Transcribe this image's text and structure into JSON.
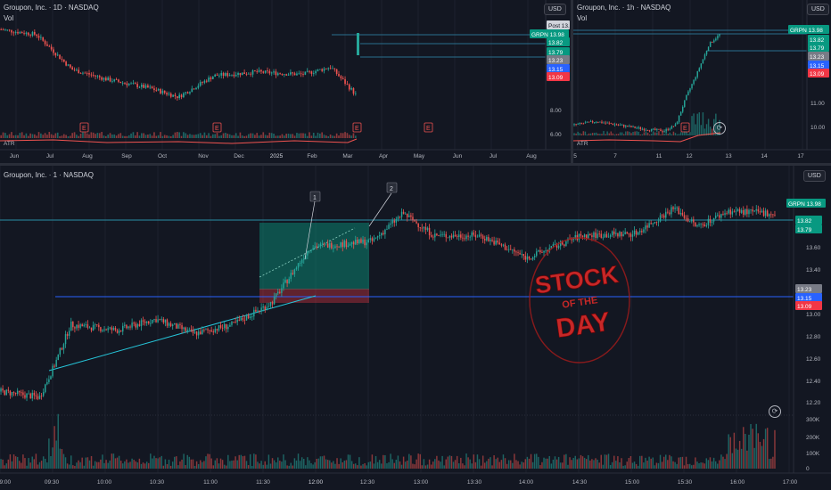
{
  "colors": {
    "up": "#26a69a",
    "down": "#ef5350",
    "bg": "#131722",
    "grid": "#1e222d",
    "level": "#2a6f8f",
    "accent": "#089981",
    "stamp": "#b71c1c"
  },
  "top_left": {
    "title": "Groupon, Inc. · 1D · NASDAQ",
    "vol_label": "Vol",
    "atr_label": "ATR",
    "currency": "USD",
    "prices": [
      "8.00",
      "6.00"
    ],
    "months": [
      "Jun",
      "Jul",
      "Aug",
      "Sep",
      "Oct",
      "Nov",
      "Dec",
      "2025",
      "Feb",
      "Mar",
      "Apr",
      "May",
      "Jun",
      "Jul",
      "Aug"
    ],
    "event_marker": "E",
    "tags": [
      {
        "text": "Post  13.98",
        "kind": "post"
      },
      {
        "text": "GRPN  13.98",
        "kind": "ticker"
      },
      {
        "text": "13.82",
        "kind": "up"
      },
      {
        "text": "13.79",
        "kind": "up"
      },
      {
        "text": "13.23",
        "kind": "gray"
      },
      {
        "text": "13.15",
        "kind": "dark"
      },
      {
        "text": "13.09",
        "kind": "down"
      }
    ]
  },
  "top_right": {
    "title": "Groupon, Inc. · 1h · NASDAQ",
    "vol_label": "Vol",
    "atr_label": "ATR",
    "currency": "USD",
    "prices": [
      "11.00",
      "10.00"
    ],
    "days": [
      "5",
      "7",
      "11",
      "12",
      "13",
      "14",
      "17"
    ],
    "event_marker": "E",
    "tags": [
      {
        "text": "GRPN  13.98",
        "kind": "ticker"
      },
      {
        "text": "13.82",
        "kind": "up"
      },
      {
        "text": "13.79",
        "kind": "up"
      },
      {
        "text": "13.23",
        "kind": "gray"
      },
      {
        "text": "13.15",
        "kind": "dark"
      },
      {
        "text": "13.09",
        "kind": "down"
      }
    ]
  },
  "main": {
    "title": "Groupon, Inc. · 1 · NASDAQ",
    "currency": "USD",
    "prices": [
      "13.60",
      "13.40",
      "13.00",
      "12.80",
      "12.60",
      "12.40",
      "12.20"
    ],
    "volume_labels": [
      "300K",
      "200K",
      "100K",
      "0"
    ],
    "times": [
      "09:00",
      "09:30",
      "10:00",
      "10:30",
      "11:00",
      "11:30",
      "12:00",
      "12:30",
      "13:00",
      "13:30",
      "14:00",
      "14:30",
      "15:00",
      "15:30",
      "16:00",
      "17:00"
    ],
    "markers": [
      "1",
      "2"
    ],
    "tags": [
      {
        "text": "GRPN  13.98",
        "kind": "ticker"
      },
      {
        "text": "13.82",
        "kind": "up"
      },
      {
        "text": "13.79",
        "kind": "up"
      },
      {
        "text": "13.23",
        "kind": "gray"
      },
      {
        "text": "13.15",
        "kind": "dark"
      },
      {
        "text": "13.09",
        "kind": "down"
      }
    ],
    "stamp": {
      "line1": "STOCK",
      "line2": "OF THE",
      "line3": "DAY"
    }
  },
  "chart_data": [
    {
      "type": "candlestick",
      "timeframe": "1D",
      "symbol": "GRPN",
      "last": 13.98,
      "post": 13.98,
      "x": [
        "Jun",
        "Jul",
        "Aug",
        "Sep",
        "Oct",
        "Nov",
        "Dec",
        "2025",
        "Feb",
        "Mar"
      ],
      "close_approx": [
        11.2,
        11.6,
        10.8,
        10.7,
        9.8,
        10.3,
        10.6,
        10.9,
        11.1,
        13.98
      ]
    },
    {
      "type": "candlestick",
      "timeframe": "1h",
      "symbol": "GRPN",
      "last": 13.98,
      "x": [
        "5",
        "7",
        "11",
        "12",
        "13"
      ],
      "close_approx": [
        10.05,
        10.15,
        10.0,
        11.8,
        13.98
      ]
    },
    {
      "type": "candlestick",
      "timeframe": "1m",
      "symbol": "GRPN",
      "last": 13.98,
      "x": [
        "09:00",
        "09:30",
        "10:00",
        "10:30",
        "11:00",
        "11:30",
        "12:00",
        "12:30",
        "13:00",
        "13:30",
        "14:00",
        "14:30",
        "15:00",
        "15:30",
        "16:00"
      ],
      "close_approx": [
        12.3,
        12.75,
        12.85,
        12.95,
        12.98,
        13.6,
        13.66,
        13.72,
        13.6,
        13.6,
        13.75,
        13.72,
        13.9,
        13.75,
        13.9
      ],
      "levels": [
        13.82,
        13.79,
        13.23,
        13.15,
        13.09
      ],
      "volume_axis": [
        0,
        100000,
        200000,
        300000
      ]
    }
  ]
}
